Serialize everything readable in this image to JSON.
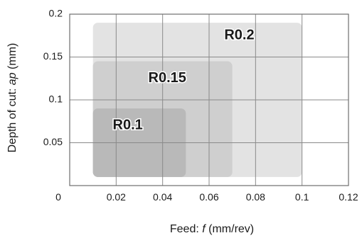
{
  "chart_data": {
    "type": "area",
    "xlabel_prefix": "Feed: ",
    "xlabel_symbol": "f",
    "xlabel_suffix": " (mm/rev)",
    "ylabel_prefix": "Depth of cut: ",
    "ylabel_symbol": "ap",
    "ylabel_suffix": " (mm)",
    "xlim": [
      0,
      0.12
    ],
    "ylim": [
      0,
      0.2
    ],
    "x_ticks": [
      {
        "value": 0,
        "label": "0"
      },
      {
        "value": 0.02,
        "label": "0.02"
      },
      {
        "value": 0.04,
        "label": "0.04"
      },
      {
        "value": 0.06,
        "label": "0.06"
      },
      {
        "value": 0.08,
        "label": "0.08"
      },
      {
        "value": 0.1,
        "label": "0.1"
      },
      {
        "value": 0.12,
        "label": "0.12"
      }
    ],
    "y_ticks": [
      {
        "value": 0.05,
        "label": "0.05"
      },
      {
        "value": 0.1,
        "label": "0.1"
      },
      {
        "value": 0.15,
        "label": "0.15"
      },
      {
        "value": 0.2,
        "label": "0.2"
      }
    ],
    "grid": true,
    "regions": [
      {
        "name": "R0.2",
        "x": [
          0.01,
          0.1
        ],
        "y": [
          0.01,
          0.19
        ],
        "color": "#e3e3e3",
        "label_at": [
          0.073,
          0.175
        ]
      },
      {
        "name": "R0.15",
        "x": [
          0.01,
          0.07
        ],
        "y": [
          0.01,
          0.145
        ],
        "color": "#cfcfcf",
        "label_at": [
          0.042,
          0.125
        ]
      },
      {
        "name": "R0.1",
        "x": [
          0.01,
          0.05
        ],
        "y": [
          0.01,
          0.09
        ],
        "color": "#b9b9b9",
        "label_at": [
          0.025,
          0.07
        ]
      }
    ]
  }
}
